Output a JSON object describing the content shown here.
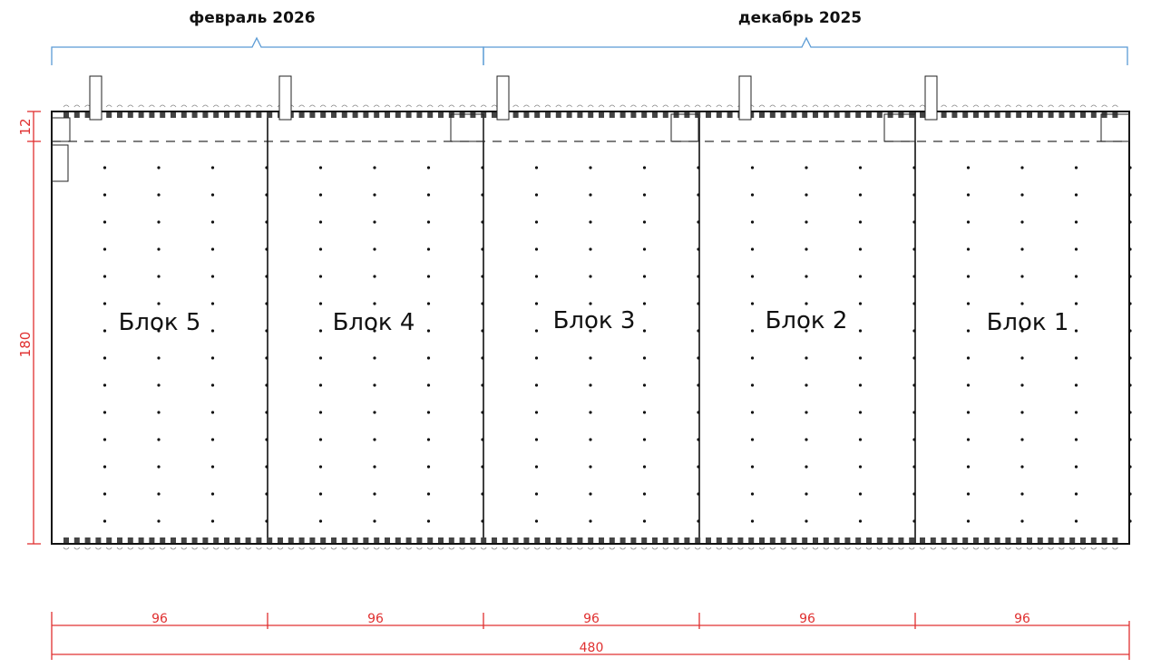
{
  "periods": [
    {
      "label": "февраль 2026",
      "blocks": [
        "Блок 5",
        "Блок 4"
      ]
    },
    {
      "label": "декабрь 2025",
      "blocks": [
        "Блок 3",
        "Блок 2",
        "Блок 1"
      ]
    }
  ],
  "blocks": [
    "Блок 5",
    "Блок 4",
    "Блок 3",
    "Блок 2",
    "Блок 1"
  ],
  "dimensions": {
    "block_widths": [
      "96",
      "96",
      "96",
      "96",
      "96"
    ],
    "total_width": "480",
    "depth": "180",
    "top_strip": "12"
  },
  "colors": {
    "dimension": "#e03030",
    "bracket": "#5b9bd5",
    "plan": "#111111"
  }
}
